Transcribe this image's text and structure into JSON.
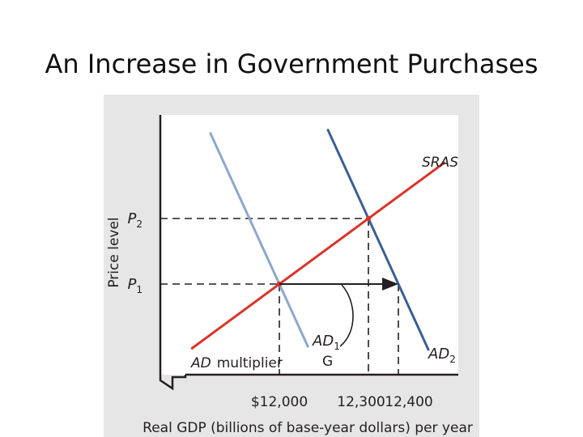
{
  "title": "An Increase in Government Purchases",
  "colors": {
    "panel_bg": "#e6e6e6",
    "ad1": "#8ca8cc",
    "ad2": "#3a5f94",
    "sras": "#d9342b",
    "guides": "#231f20"
  },
  "chart_data": {
    "type": "line",
    "title": "An Increase in Government Purchases",
    "xlabel": "Real GDP (billions of base-year dollars) per year",
    "ylabel": "Price level",
    "x_ticks": [
      {
        "value": 12000,
        "label": "$12,000"
      },
      {
        "value": 12300,
        "label": "12,300"
      },
      {
        "value": 12400,
        "label": "12,400"
      }
    ],
    "y_ticks": [
      {
        "value": 1,
        "label": "P",
        "sub": "1"
      },
      {
        "value": 2,
        "label": "P",
        "sub": "2"
      }
    ],
    "series": [
      {
        "name": "AD",
        "sub": "1",
        "points": [
          [
            12000,
            1
          ]
        ]
      },
      {
        "name": "AD",
        "sub": "2",
        "points": [
          [
            12300,
            2
          ],
          [
            12400,
            1
          ]
        ]
      },
      {
        "name": "SRAS",
        "sub": "",
        "points": [
          [
            12000,
            1
          ],
          [
            12300,
            2
          ]
        ]
      }
    ],
    "annotations": {
      "shift_label": "G",
      "multiplier_label_italic": "AD",
      "multiplier_label": "multiplier"
    }
  }
}
